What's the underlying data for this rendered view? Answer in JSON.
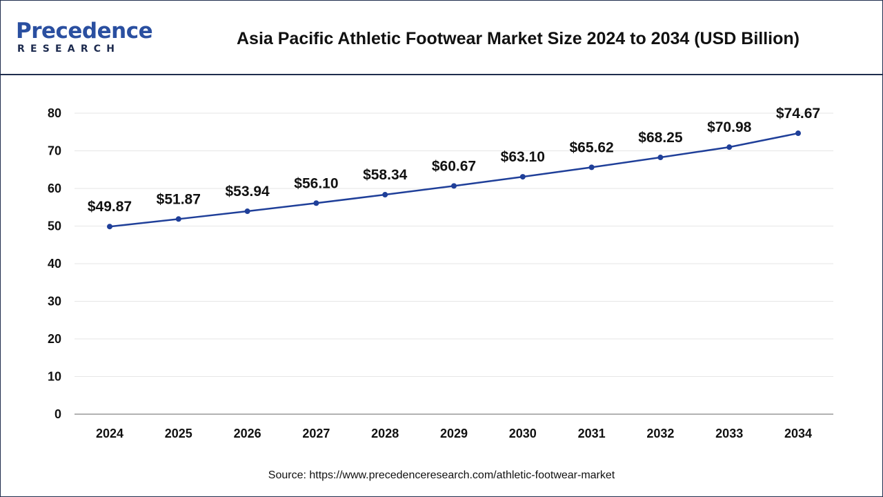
{
  "header": {
    "logo_word": "Precedence",
    "logo_sub": "RESEARCH",
    "title": "Asia Pacific Athletic Footwear Market Size 2024 to 2034 (USD Billion)"
  },
  "footer": {
    "source": "Source: https://www.precedenceresearch.com/athletic-footwear-market"
  },
  "colors": {
    "line": "#1f3f99",
    "grid": "#e6e6e6",
    "axis": "#999999",
    "text": "#111111"
  },
  "chart_data": {
    "type": "line",
    "title": "Asia Pacific Athletic Footwear Market Size 2024 to 2034 (USD Billion)",
    "categories": [
      "2024",
      "2025",
      "2026",
      "2027",
      "2028",
      "2029",
      "2030",
      "2031",
      "2032",
      "2033",
      "2034"
    ],
    "series": [
      {
        "values": [
          49.87,
          51.87,
          53.94,
          56.1,
          58.34,
          60.67,
          63.1,
          65.62,
          68.25,
          70.98,
          74.67
        ],
        "labels": [
          "$49.87",
          "$51.87",
          "$53.94",
          "$56.10",
          "$58.34",
          "$60.67",
          "$63.10",
          "$65.62",
          "$68.25",
          "$70.98",
          "$74.67"
        ]
      }
    ],
    "ylim": [
      0,
      80
    ],
    "yticks": [
      "0",
      "10",
      "20",
      "30",
      "40",
      "50",
      "60",
      "70",
      "80"
    ],
    "grid": true,
    "legend": "none"
  }
}
